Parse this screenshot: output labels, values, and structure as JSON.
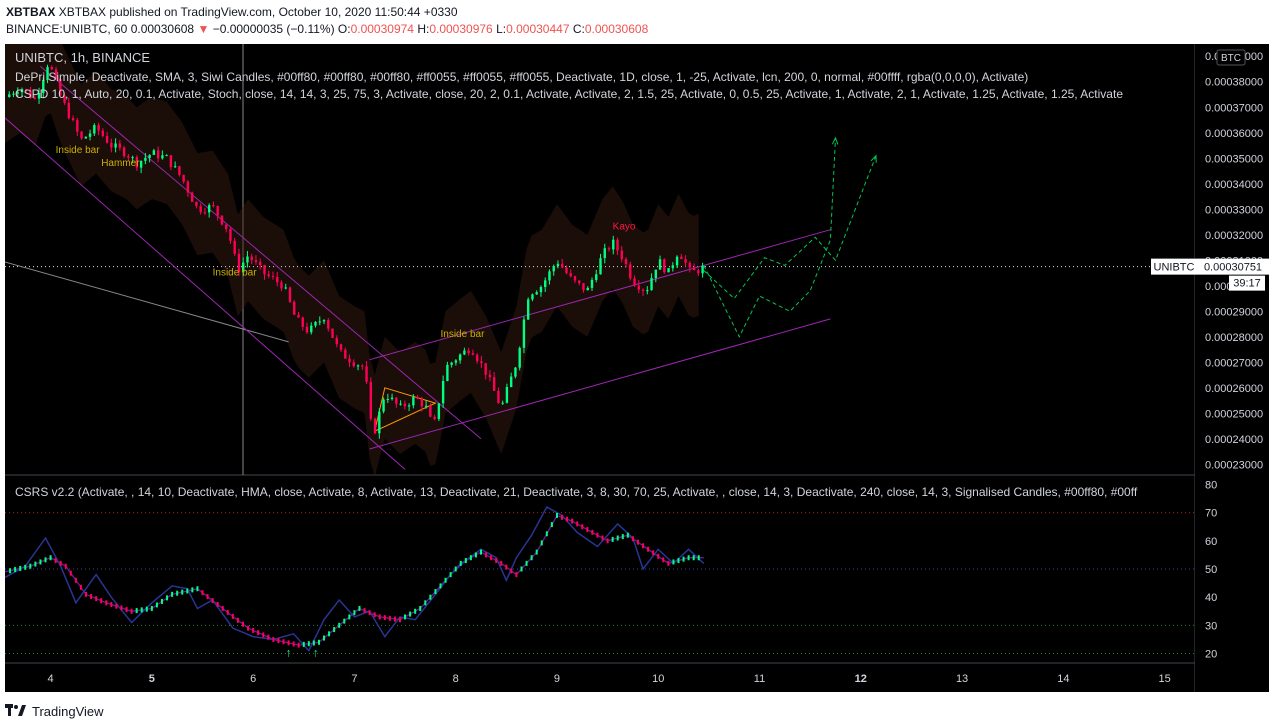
{
  "header": {
    "published": "XBTBAX published on TradingView.com, October 10, 2020 11:50:44 +0330",
    "symbol": "BINANCE:UNIBTC, 60",
    "last": "0.00030608",
    "change_arrow": "▼",
    "change": "−0.00000035 (−0.11%)",
    "o_label": "O:",
    "o": "0.00030974",
    "h_label": "H:",
    "h": "0.00030976",
    "l_label": "L:",
    "l": "0.00030447",
    "c_label": "C:",
    "c": "0.00030608"
  },
  "main": {
    "title": "UNIBTC, 1h, BINANCE",
    "ind1": "DePri Simple, Deactivate, SMA, 3, Siwi Candles, #00ff80, #00ff80, #00ff80, #ff0055, #ff0055, #ff0055, Deactivate, 1D, close, 1, -25, Activate, lcn, 200, 0, normal, #00ffff, rgba(0,0,0,0), Activate)",
    "ind2": "CSPD 10, 1, Auto, 20, 0.1, Activate, Stoch, close, 14, 14, 3, 25, 75, 3, Activate, close, 20, 2, 0.1, Activate, Activate, 2, 1.5, 25, Activate, 0, 0.5, 25, Activate, 1, Activate, 2, 1, Activate, 1.25, Activate, 1.25, Activate",
    "currency": "BTC",
    "ticker_label": "UNIBTC",
    "ticker_price": "0.00030751",
    "countdown": "39:17",
    "annotations": [
      "Inside bar",
      "Hammer",
      "Inside bar",
      "Inside bar",
      "Kayo"
    ]
  },
  "sub": {
    "title": "CSRS v2.2 (Activate, , 14, 10, Deactivate, HMA, close, Activate, 8, Activate, 13, Deactivate, 21, Deactivate, 3, 8, 30, 70, 25, Activate, , close, 14, 3, Deactivate, 240, close, 14, 3, Signalised Candles, #00ff80, #00ff"
  },
  "footer": {
    "brand": "TradingView"
  },
  "colors": {
    "up": "#00ff80",
    "down": "#ff0055",
    "channel": "#9c27b0",
    "forecast": "#00c853",
    "orange": "#ff9800",
    "rsi_line": "#283593",
    "gold": "#c9b000",
    "red_annot": "#ff1744"
  },
  "chart_data": [
    {
      "type": "candlestick",
      "title": "UNIBTC, 1h, BINANCE",
      "x_ticks": [
        4,
        5,
        6,
        7,
        8,
        9,
        10,
        11,
        12,
        13,
        14,
        15
      ],
      "x_bold": [
        5,
        12
      ],
      "y_ticks": [
        0.00023,
        0.00024,
        0.00025,
        0.00026,
        0.00027,
        0.00028,
        0.00029,
        0.0003,
        0.00031,
        0.00032,
        0.00033,
        0.00034,
        0.00035,
        0.00036,
        0.00037,
        0.00038,
        0.00039
      ],
      "ylim": [
        0.0002262,
        0.0003948
      ],
      "xlim": [
        3.55,
        15.3
      ],
      "price_path": [
        [
          3.55,
          0.000374
        ],
        [
          3.7,
          0.000378
        ],
        [
          3.85,
          0.000373
        ],
        [
          3.98,
          0.000388
        ],
        [
          4.1,
          0.000374
        ],
        [
          4.3,
          0.000357
        ],
        [
          4.45,
          0.000362
        ],
        [
          4.6,
          0.000355
        ],
        [
          4.75,
          0.000352
        ],
        [
          4.85,
          0.000348
        ],
        [
          5.0,
          0.000352
        ],
        [
          5.15,
          0.00035
        ],
        [
          5.3,
          0.000342
        ],
        [
          5.45,
          0.00033
        ],
        [
          5.6,
          0.000331
        ],
        [
          5.75,
          0.000322
        ],
        [
          5.85,
          0.000306
        ],
        [
          5.95,
          0.000312
        ],
        [
          6.1,
          0.000305
        ],
        [
          6.3,
          0.0003
        ],
        [
          6.42,
          0.000287
        ],
        [
          6.55,
          0.000282
        ],
        [
          6.7,
          0.000288
        ],
        [
          6.85,
          0.000274
        ],
        [
          7.0,
          0.00027
        ],
        [
          7.1,
          0.000268
        ],
        [
          7.18,
          0.00024
        ],
        [
          7.3,
          0.000258
        ],
        [
          7.45,
          0.000252
        ],
        [
          7.6,
          0.000256
        ],
        [
          7.7,
          0.000253
        ],
        [
          7.78,
          0.000244
        ],
        [
          7.9,
          0.000268
        ],
        [
          8.05,
          0.000273
        ],
        [
          8.15,
          0.000276
        ],
        [
          8.3,
          0.000266
        ],
        [
          8.45,
          0.000252
        ],
        [
          8.6,
          0.00027
        ],
        [
          8.72,
          0.000297
        ],
        [
          8.85,
          0.0003
        ],
        [
          9.0,
          0.00031
        ],
        [
          9.15,
          0.000302
        ],
        [
          9.3,
          0.000298
        ],
        [
          9.45,
          0.000312
        ],
        [
          9.55,
          0.000317
        ],
        [
          9.65,
          0.000311
        ],
        [
          9.75,
          0.000302
        ],
        [
          9.88,
          0.000298
        ],
        [
          10.0,
          0.00031
        ],
        [
          10.1,
          0.000305
        ],
        [
          10.2,
          0.000314
        ],
        [
          10.32,
          0.000305
        ],
        [
          10.45,
          0.000307
        ]
      ],
      "last_price": 0.00030751,
      "channel_down": [
        [
          [
            3.9,
            0.000386
          ],
          [
            8.25,
            0.00024
          ]
        ],
        [
          [
            3.2,
            0.000378
          ],
          [
            7.5,
            0.000228
          ]
        ]
      ],
      "channel_up": [
        [
          [
            7.15,
            0.000271
          ],
          [
            11.7,
            0.000322
          ]
        ],
        [
          [
            7.15,
            0.000236
          ],
          [
            11.7,
            0.000287
          ]
        ]
      ],
      "ref_line": [
        [
          3.4,
          0.000311
        ],
        [
          6.35,
          0.000278
        ]
      ],
      "forecast_1": [
        [
          10.45,
          0.000308
        ],
        [
          10.8,
          0.00028
        ],
        [
          11.0,
          0.000296
        ],
        [
          11.3,
          0.00029
        ],
        [
          11.5,
          0.000298
        ],
        [
          11.7,
          0.000318
        ],
        [
          11.75,
          0.000358
        ]
      ],
      "forecast_2": [
        [
          10.45,
          0.000306
        ],
        [
          10.75,
          0.000295
        ],
        [
          11.05,
          0.000311
        ],
        [
          11.25,
          0.000308
        ],
        [
          11.55,
          0.000319
        ],
        [
          11.75,
          0.00031
        ],
        [
          12.15,
          0.000351
        ]
      ],
      "wedge": [
        [
          7.3,
          0.00026
        ],
        [
          7.8,
          0.000254
        ],
        [
          7.2,
          0.000243
        ]
      ]
    },
    {
      "type": "line",
      "title": "CSRS v2.2",
      "y_ticks": [
        20,
        30,
        40,
        50,
        60,
        70,
        80
      ],
      "ylim": [
        17,
        83
      ],
      "levels": [
        20,
        30,
        50,
        70
      ],
      "rsi": [
        [
          3.55,
          47
        ],
        [
          3.75,
          51
        ],
        [
          3.95,
          61
        ],
        [
          4.1,
          51
        ],
        [
          4.25,
          38
        ],
        [
          4.45,
          48
        ],
        [
          4.6,
          40
        ],
        [
          4.8,
          31
        ],
        [
          5.0,
          38
        ],
        [
          5.2,
          44
        ],
        [
          5.35,
          43
        ],
        [
          5.45,
          36
        ],
        [
          5.6,
          39
        ],
        [
          5.8,
          29
        ],
        [
          6.0,
          26
        ],
        [
          6.2,
          25
        ],
        [
          6.4,
          27
        ],
        [
          6.55,
          21
        ],
        [
          6.7,
          32
        ],
        [
          6.85,
          39
        ],
        [
          7.0,
          33
        ],
        [
          7.15,
          35
        ],
        [
          7.3,
          26
        ],
        [
          7.45,
          33
        ],
        [
          7.6,
          32
        ],
        [
          7.8,
          41
        ],
        [
          7.95,
          48
        ],
        [
          8.1,
          53
        ],
        [
          8.25,
          57
        ],
        [
          8.4,
          54
        ],
        [
          8.5,
          46
        ],
        [
          8.6,
          54
        ],
        [
          8.75,
          62
        ],
        [
          8.9,
          72
        ],
        [
          9.05,
          69
        ],
        [
          9.2,
          63
        ],
        [
          9.4,
          58
        ],
        [
          9.6,
          66
        ],
        [
          9.75,
          61
        ],
        [
          9.85,
          50
        ],
        [
          10.0,
          57
        ],
        [
          10.15,
          52
        ],
        [
          10.3,
          57
        ],
        [
          10.45,
          52
        ]
      ],
      "signal": [
        [
          3.55,
          49
        ],
        [
          3.8,
          51
        ],
        [
          4.0,
          54
        ],
        [
          4.15,
          51
        ],
        [
          4.35,
          41
        ],
        [
          4.55,
          38
        ],
        [
          4.8,
          35
        ],
        [
          5.0,
          36
        ],
        [
          5.2,
          41
        ],
        [
          5.45,
          43
        ],
        [
          5.7,
          36
        ],
        [
          5.95,
          29
        ],
        [
          6.2,
          25
        ],
        [
          6.45,
          23
        ],
        [
          6.65,
          24
        ],
        [
          6.85,
          30
        ],
        [
          7.05,
          36
        ],
        [
          7.25,
          33
        ],
        [
          7.45,
          32
        ],
        [
          7.65,
          36
        ],
        [
          7.85,
          44
        ],
        [
          8.05,
          52
        ],
        [
          8.25,
          56
        ],
        [
          8.45,
          52
        ],
        [
          8.6,
          48
        ],
        [
          8.8,
          56
        ],
        [
          9.0,
          69
        ],
        [
          9.15,
          67
        ],
        [
          9.35,
          63
        ],
        [
          9.5,
          60
        ],
        [
          9.7,
          62
        ],
        [
          9.9,
          57
        ],
        [
          10.1,
          52
        ],
        [
          10.3,
          54
        ],
        [
          10.45,
          54
        ]
      ]
    }
  ]
}
